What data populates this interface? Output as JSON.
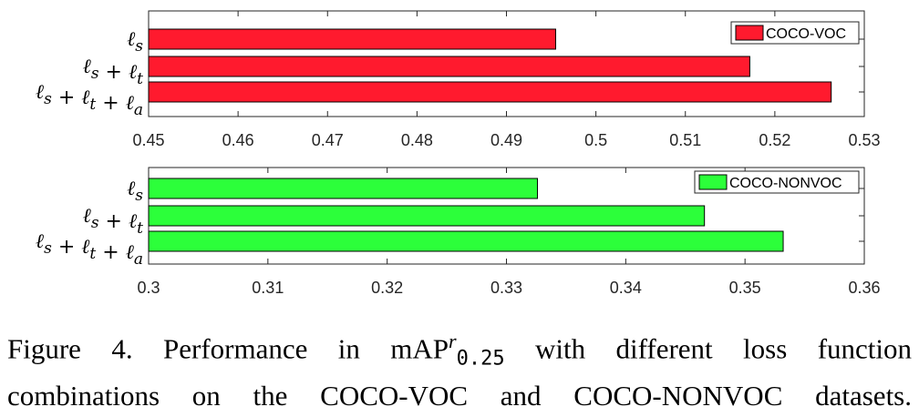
{
  "chart_data": [
    {
      "type": "bar",
      "orientation": "horizontal",
      "categories": [
        "ℓs",
        "ℓs + ℓt",
        "ℓs + ℓt + ℓa"
      ],
      "series": [
        {
          "name": "COCO-VOC",
          "values": [
            0.4955,
            0.5172,
            0.5263
          ],
          "color": "#ff1a2e"
        }
      ],
      "xlim": [
        0.45,
        0.53
      ],
      "xticks": [
        "0.45",
        "0.46",
        "0.47",
        "0.48",
        "0.49",
        "0.5",
        "0.51",
        "0.52",
        "0.53"
      ],
      "legend": "top-right",
      "grid": false
    },
    {
      "type": "bar",
      "orientation": "horizontal",
      "categories": [
        "ℓs",
        "ℓs + ℓt",
        "ℓs + ℓt + ℓa"
      ],
      "series": [
        {
          "name": "COCO-NONVOC",
          "values": [
            0.3326,
            0.3466,
            0.3532
          ],
          "color": "#2cff3a"
        }
      ],
      "xlim": [
        0.3,
        0.36
      ],
      "xticks": [
        "0.3",
        "0.31",
        "0.32",
        "0.33",
        "0.34",
        "0.35",
        "0.36"
      ],
      "legend": "top-right",
      "grid": false
    }
  ],
  "caption": {
    "label": "Figure 4.",
    "text_before": "Performance in mAP",
    "super": "r",
    "sub": "0.25",
    "text_after": "with different loss function",
    "line2": "combinations on the COCO-VOC and COCO-NONVOC datasets."
  }
}
